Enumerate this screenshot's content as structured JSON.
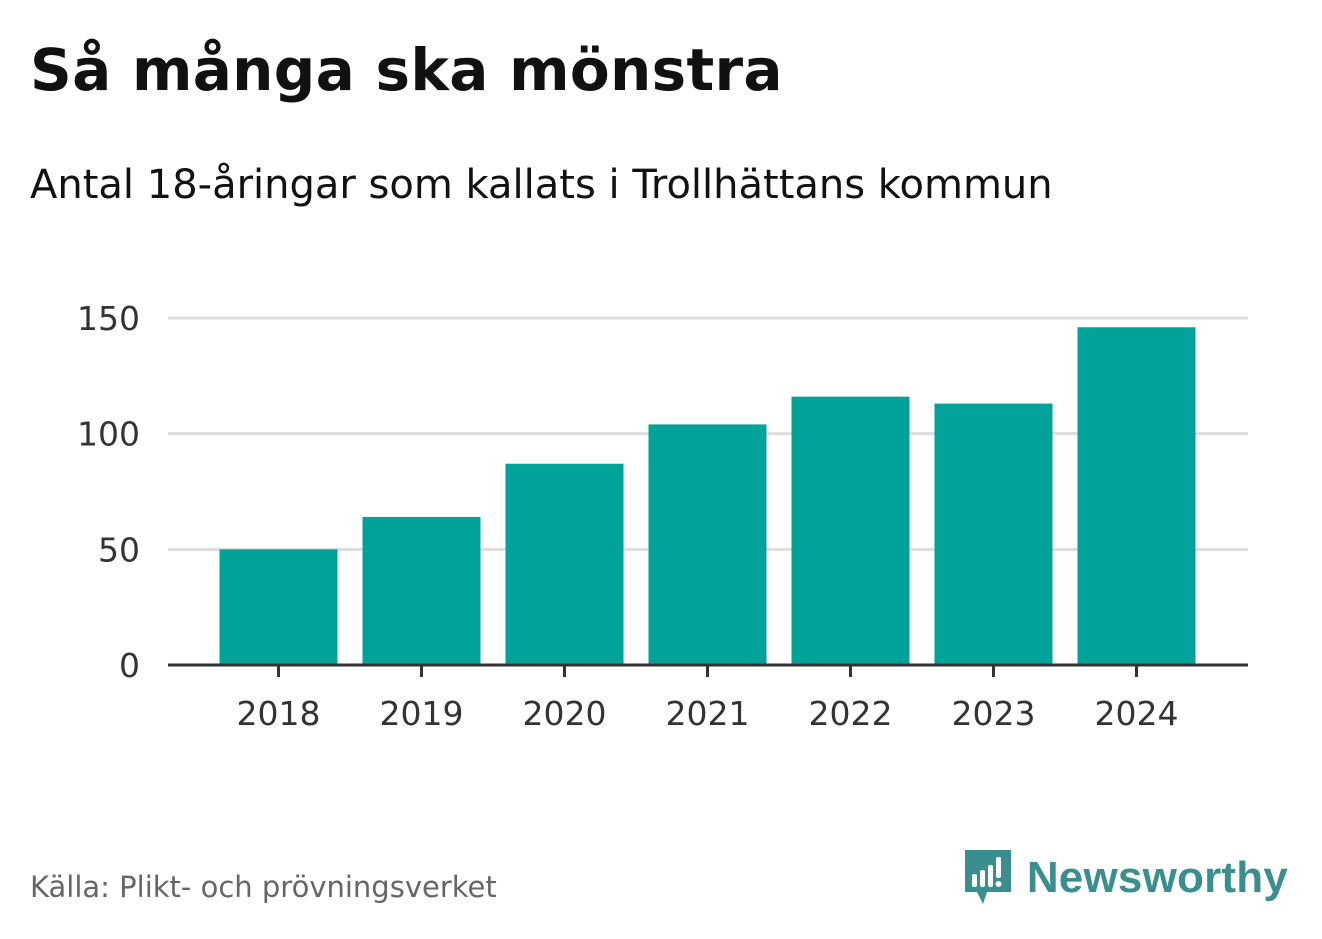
{
  "header": {
    "title": "Så många ska mönstra",
    "subtitle": "Antal 18-åringar som kallats i Trollhättans kommun"
  },
  "footer": {
    "source": "Källa: Plikt- och prövningsverket",
    "brand": "Newsworthy",
    "brand_icon": "newsworthy-logo-icon"
  },
  "colors": {
    "bar": "#00a29a",
    "grid": "#dddddd",
    "axis": "#333333",
    "brand": "#3a8f8e"
  },
  "chart_data": {
    "type": "bar",
    "title": "Så många ska mönstra",
    "subtitle": "Antal 18-åringar som kallats i Trollhättans kommun",
    "categories": [
      "2018",
      "2019",
      "2020",
      "2021",
      "2022",
      "2023",
      "2024"
    ],
    "values": [
      50,
      64,
      87,
      104,
      116,
      113,
      146
    ],
    "xlabel": "",
    "ylabel": "",
    "ylim": [
      0,
      150
    ],
    "yticks": [
      0,
      50,
      100,
      150
    ],
    "grid": true,
    "legend": "none"
  }
}
